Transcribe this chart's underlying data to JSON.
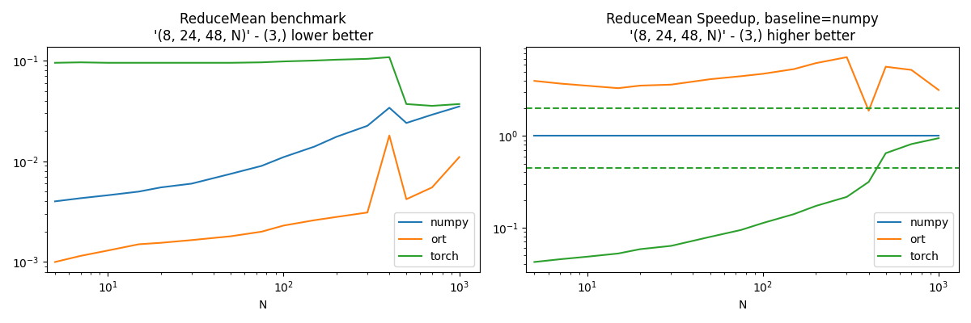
{
  "title1": "ReduceMean benchmark\n'(8, 24, 48, N)' - (3,) lower better",
  "title2": "ReduceMean Speedup, baseline=numpy\n'(8, 24, 48, N)' - (3,) higher better",
  "xlabel": "N",
  "N_values": [
    5,
    7,
    10,
    15,
    20,
    30,
    50,
    75,
    100,
    150,
    200,
    300,
    400,
    500,
    700,
    1000
  ],
  "numpy_times": [
    0.004,
    0.0043,
    0.0046,
    0.005,
    0.0055,
    0.006,
    0.0075,
    0.009,
    0.011,
    0.014,
    0.0175,
    0.0225,
    0.034,
    0.024,
    0.029,
    0.035
  ],
  "ort_times": [
    0.001,
    0.00115,
    0.0013,
    0.0015,
    0.00155,
    0.00165,
    0.0018,
    0.002,
    0.0023,
    0.0026,
    0.0028,
    0.0031,
    0.018,
    0.0042,
    0.0055,
    0.011
  ],
  "torch_times": [
    0.095,
    0.096,
    0.095,
    0.095,
    0.095,
    0.095,
    0.095,
    0.096,
    0.098,
    0.1,
    0.102,
    0.104,
    0.108,
    0.037,
    0.0355,
    0.037
  ],
  "numpy_speedup": [
    1.0,
    1.0,
    1.0,
    1.0,
    1.0,
    1.0,
    1.0,
    1.0,
    1.0,
    1.0,
    1.0,
    1.0,
    1.0,
    1.0,
    1.0,
    1.0
  ],
  "ort_speedup": [
    4.0,
    3.74,
    3.54,
    3.33,
    3.55,
    3.64,
    4.17,
    4.5,
    4.78,
    5.38,
    6.25,
    7.26,
    1.89,
    5.71,
    5.27,
    3.18
  ],
  "torch_speedup": [
    0.042,
    0.045,
    0.048,
    0.052,
    0.058,
    0.063,
    0.079,
    0.094,
    0.112,
    0.14,
    0.172,
    0.216,
    0.315,
    0.649,
    0.816,
    0.946
  ],
  "torch_dashed_upper": 2.0,
  "torch_dashed_lower": 0.45,
  "color_numpy": "#1f77b4",
  "color_ort": "#ff7f0e",
  "color_torch": "#2ca02c"
}
